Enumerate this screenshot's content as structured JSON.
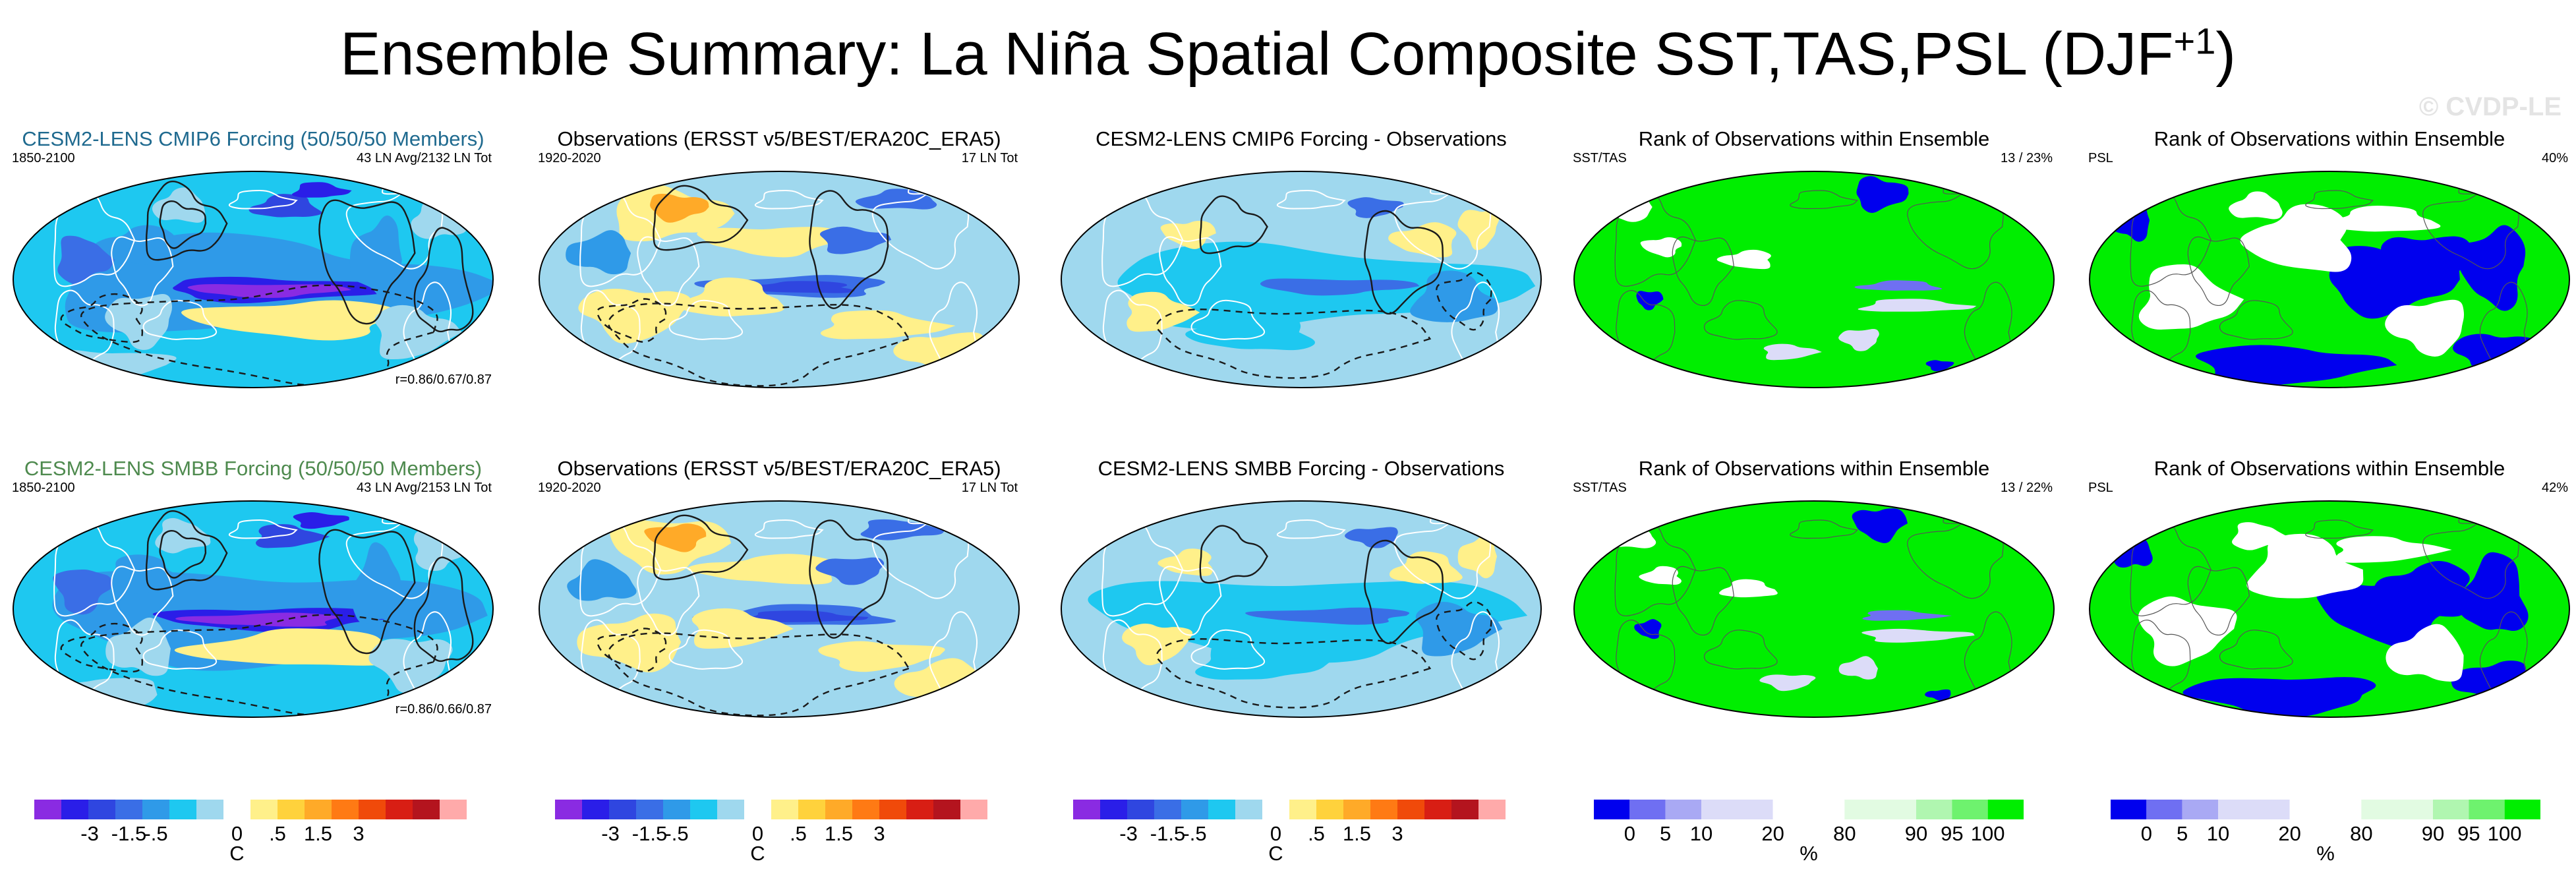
{
  "title": {
    "text": "Ensemble Summary: La Niña Spatial Composite SST,TAS,PSL (DJF",
    "sup": "+1",
    "close": ")"
  },
  "watermark": "© CVDP-LE",
  "colors": {
    "diverging": [
      "#8a2be2",
      "#2a1ee8",
      "#2f46e0",
      "#3a6ee6",
      "#2f9ae8",
      "#1ec8f0",
      "#9fd8ee",
      "#ffffff",
      "#fff08a",
      "#ffd23c",
      "#ffaa28",
      "#ff7a14",
      "#f04a0a",
      "#d81e14",
      "#b4141e",
      "#ffaaaa"
    ],
    "rank": [
      "#0000ee",
      "#6f6ff2",
      "#a9a9f4",
      "#dcdcf8",
      "#ffffff",
      "#e2fbe2",
      "#b0f6b0",
      "#6ef26e",
      "#00ee00"
    ],
    "land_outline": "#ffffff",
    "contour": "#1a1a1a"
  },
  "colorbars": {
    "temp": {
      "ticks": [
        "-3",
        "-1.5",
        "-.5",
        "0",
        ".5",
        "1.5",
        "3"
      ],
      "unit": "C"
    },
    "rank": {
      "ticks": [
        "0",
        "5",
        "10",
        "20",
        "80",
        "90",
        "95",
        "100"
      ],
      "unit": "%"
    }
  },
  "panels": [
    {
      "title": "CESM2-LENS CMIP6 Forcing (50/50/50 Members)",
      "title_style": "cmip",
      "left": "1850-2100",
      "right": "43 LN Avg/2132 LN Tot",
      "bottom": "r=0.86/0.67/0.87",
      "kind": "model"
    },
    {
      "title": "Observations (ERSST v5/BEST/ERA20C_ERA5)",
      "title_style": "",
      "left": "1920-2020",
      "right": "17 LN Tot",
      "bottom": "",
      "kind": "obs"
    },
    {
      "title": "CESM2-LENS CMIP6 Forcing - Observations",
      "title_style": "",
      "left": "",
      "right": "",
      "bottom": "",
      "kind": "diff"
    },
    {
      "title": "Rank of Observations within Ensemble",
      "title_style": "",
      "left": "SST/TAS",
      "right": "13 /  23%",
      "bottom": "",
      "kind": "rank_tas"
    },
    {
      "title": "Rank of Observations within Ensemble",
      "title_style": "",
      "left": "PSL",
      "right": "40%",
      "bottom": "",
      "kind": "rank_psl"
    },
    {
      "title": "CESM2-LENS SMBB Forcing (50/50/50 Members)",
      "title_style": "smbb",
      "left": "1850-2100",
      "right": "43 LN Avg/2153 LN Tot",
      "bottom": "r=0.86/0.66/0.87",
      "kind": "model"
    },
    {
      "title": "Observations (ERSST v5/BEST/ERA20C_ERA5)",
      "title_style": "",
      "left": "1920-2020",
      "right": "17 LN Tot",
      "bottom": "",
      "kind": "obs"
    },
    {
      "title": "CESM2-LENS SMBB Forcing - Observations",
      "title_style": "",
      "left": "",
      "right": "",
      "bottom": "",
      "kind": "diff"
    },
    {
      "title": "Rank of Observations within Ensemble",
      "title_style": "",
      "left": "SST/TAS",
      "right": "13 /  22%",
      "bottom": "",
      "kind": "rank_tas"
    },
    {
      "title": "Rank of Observations within Ensemble",
      "title_style": "",
      "left": "PSL",
      "right": "42%",
      "bottom": "",
      "kind": "rank_psl"
    }
  ]
}
